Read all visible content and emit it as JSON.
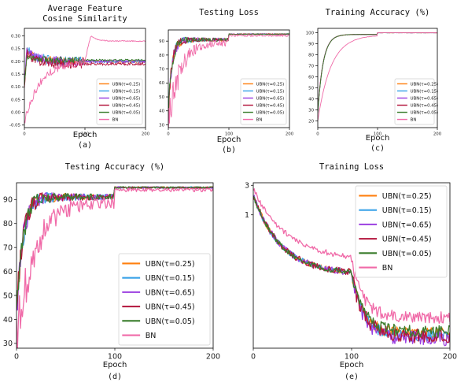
{
  "series_colors": {
    "UBN(τ=0.25)": "#ff7f0e",
    "UBN(τ=0.15)": "#3ba3e8",
    "UBN(τ=0.65)": "#9b3fe0",
    "UBN(τ=0.45)": "#b3143c",
    "UBN(τ=0.05)": "#3a7d2c",
    "BN": "#f06aa8"
  },
  "chart_data": [
    {
      "id": "a",
      "type": "line",
      "title": [
        "Average Feature",
        "Cosine Similarity"
      ],
      "xlabel": "Epoch",
      "caption": "(a)",
      "xlim": [
        0,
        200
      ],
      "ylim": [
        -0.06,
        0.33
      ],
      "xticks": [
        0,
        100,
        200
      ],
      "yticks": [
        -0.05,
        0.0,
        0.05,
        0.1,
        0.15,
        0.2,
        0.25,
        0.3
      ],
      "ytick_labels": [
        "-0.05",
        "0.00",
        "0.05",
        "0.10",
        "0.15",
        "0.20",
        "0.25",
        "0.30"
      ],
      "legend": [
        "UBN(τ=0.25)",
        "UBN(τ=0.15)",
        "UBN(τ=0.65)",
        "UBN(τ=0.45)",
        "UBN(τ=0.05)",
        "BN"
      ],
      "legend_loc": "lower-right",
      "series": [
        {
          "name": "UBN(τ=0.25)",
          "kind": "decay",
          "start": 0.1,
          "peak": 0.24,
          "final": 0.2,
          "noise": 0.01
        },
        {
          "name": "UBN(τ=0.15)",
          "kind": "decay",
          "start": 0.11,
          "peak": 0.25,
          "final": 0.2,
          "noise": 0.012
        },
        {
          "name": "UBN(τ=0.65)",
          "kind": "decay",
          "start": 0.12,
          "peak": 0.24,
          "final": 0.2,
          "noise": 0.012
        },
        {
          "name": "UBN(τ=0.45)",
          "kind": "decay",
          "start": 0.09,
          "peak": 0.23,
          "final": 0.19,
          "noise": 0.012
        },
        {
          "name": "UBN(τ=0.05)",
          "kind": "decay",
          "start": 0.1,
          "peak": 0.22,
          "final": 0.205,
          "noise": 0.008
        },
        {
          "name": "BN",
          "kind": "cos_bn",
          "start": -0.04,
          "final": 0.28,
          "noise": 0.01
        }
      ]
    },
    {
      "id": "b",
      "type": "line",
      "title": [
        "Testing Loss"
      ],
      "xlabel": "Epoch",
      "caption": "(b)",
      "xlim": [
        0,
        200
      ],
      "ylim": [
        28,
        98
      ],
      "xticks": [
        0,
        100,
        200
      ],
      "yticks": [
        30,
        40,
        50,
        60,
        70,
        80,
        90
      ],
      "ytick_labels": [
        "30",
        "40",
        "50",
        "60",
        "70",
        "80",
        "90"
      ],
      "legend": [
        "UBN(τ=0.25)",
        "UBN(τ=0.15)",
        "UBN(τ=0.65)",
        "UBN(τ=0.45)",
        "UBN(τ=0.05)",
        "BN"
      ],
      "legend_loc": "lower-right",
      "series": [
        {
          "name": "UBN(τ=0.25)",
          "kind": "acc",
          "start": 40,
          "plateau": 91,
          "final": 95,
          "tau": 6,
          "noise": 1.2
        },
        {
          "name": "UBN(τ=0.15)",
          "kind": "acc",
          "start": 40,
          "plateau": 91,
          "final": 95,
          "tau": 6,
          "noise": 1.2
        },
        {
          "name": "UBN(τ=0.65)",
          "kind": "acc",
          "start": 40,
          "plateau": 91,
          "final": 95,
          "tau": 6,
          "noise": 1.2
        },
        {
          "name": "UBN(τ=0.45)",
          "kind": "acc",
          "start": 40,
          "plateau": 91,
          "final": 95,
          "tau": 6,
          "noise": 1.2
        },
        {
          "name": "UBN(τ=0.05)",
          "kind": "acc",
          "start": 40,
          "plateau": 91,
          "final": 95,
          "tau": 6,
          "noise": 1.2
        },
        {
          "name": "BN",
          "kind": "acc",
          "start": 31,
          "plateau": 89,
          "final": 94,
          "tau": 18,
          "noise": 2.5
        }
      ]
    },
    {
      "id": "c",
      "type": "line",
      "title": [
        "Training Accuracy (%)"
      ],
      "xlabel": "Epoch",
      "caption": "(c)",
      "xlim": [
        0,
        200
      ],
      "ylim": [
        14,
        104
      ],
      "xticks": [
        0,
        100,
        200
      ],
      "yticks": [
        20,
        30,
        40,
        50,
        60,
        70,
        80,
        90,
        100
      ],
      "ytick_labels": [
        "20",
        "30",
        "40",
        "50",
        "60",
        "70",
        "80",
        "90",
        "100"
      ],
      "legend": [
        "UBN(τ=0.25)",
        "UBN(τ=0.15)",
        "UBN(τ=0.65)",
        "UBN(τ=0.45)",
        "UBN(τ=0.05)",
        "BN"
      ],
      "legend_loc": "lower-right",
      "series": [
        {
          "name": "UBN(τ=0.25)",
          "kind": "smooth",
          "start": 28,
          "plateau": 98.5,
          "final": 100,
          "tau": 9
        },
        {
          "name": "UBN(τ=0.15)",
          "kind": "smooth",
          "start": 27,
          "plateau": 98.5,
          "final": 100,
          "tau": 9
        },
        {
          "name": "UBN(τ=0.65)",
          "kind": "smooth",
          "start": 29,
          "plateau": 98.5,
          "final": 100,
          "tau": 9
        },
        {
          "name": "UBN(τ=0.45)",
          "kind": "smooth",
          "start": 28,
          "plateau": 98.5,
          "final": 100,
          "tau": 9
        },
        {
          "name": "UBN(τ=0.05)",
          "kind": "smooth",
          "start": 27,
          "plateau": 98.5,
          "final": 100,
          "tau": 9
        },
        {
          "name": "BN",
          "kind": "smooth",
          "start": 20,
          "plateau": 98,
          "final": 100,
          "tau": 22
        }
      ]
    },
    {
      "id": "d",
      "type": "line",
      "title": [
        "Testing Accuracy (%)"
      ],
      "xlabel": "Epoch",
      "caption": "(d)",
      "xlim": [
        0,
        200
      ],
      "ylim": [
        28,
        97
      ],
      "xticks": [
        0,
        100,
        200
      ],
      "yticks": [
        30,
        40,
        50,
        60,
        70,
        80,
        90
      ],
      "ytick_labels": [
        "30",
        "40",
        "50",
        "60",
        "70",
        "80",
        "90"
      ],
      "legend": [
        "UBN(τ=0.25)",
        "UBN(τ=0.15)",
        "UBN(τ=0.65)",
        "UBN(τ=0.45)",
        "UBN(τ=0.05)",
        "BN"
      ],
      "legend_loc": "lower-right",
      "series": [
        {
          "name": "UBN(τ=0.25)",
          "kind": "acc",
          "start": 40,
          "plateau": 91,
          "final": 95,
          "tau": 6,
          "noise": 1.2
        },
        {
          "name": "UBN(τ=0.15)",
          "kind": "acc",
          "start": 40,
          "plateau": 91,
          "final": 95,
          "tau": 6,
          "noise": 1.2
        },
        {
          "name": "UBN(τ=0.65)",
          "kind": "acc",
          "start": 40,
          "plateau": 91,
          "final": 95,
          "tau": 6,
          "noise": 1.2
        },
        {
          "name": "UBN(τ=0.45)",
          "kind": "acc",
          "start": 40,
          "plateau": 91,
          "final": 95,
          "tau": 6,
          "noise": 1.2
        },
        {
          "name": "UBN(τ=0.05)",
          "kind": "acc",
          "start": 40,
          "plateau": 91,
          "final": 95,
          "tau": 6,
          "noise": 1.2
        },
        {
          "name": "BN",
          "kind": "acc",
          "start": 31,
          "plateau": 89,
          "final": 94,
          "tau": 18,
          "noise": 2.5
        }
      ]
    },
    {
      "id": "e",
      "type": "line",
      "title": [
        "Training Loss"
      ],
      "xlabel": "Epoch",
      "caption": "(e)",
      "xlim": [
        0,
        200
      ],
      "yscale": "log",
      "ylim": [
        0.007,
        3.3
      ],
      "xticks": [
        0,
        100,
        200
      ],
      "yticks": [
        1,
        3
      ],
      "ytick_labels": [
        "1",
        "3"
      ],
      "legend": [
        "UBN(τ=0.25)",
        "UBN(τ=0.15)",
        "UBN(τ=0.65)",
        "UBN(τ=0.45)",
        "UBN(τ=0.05)",
        "BN"
      ],
      "legend_loc": "upper-right",
      "series": [
        {
          "name": "UBN(τ=0.25)",
          "kind": "loss",
          "start": 2.1,
          "mid": 0.11,
          "final": 0.012,
          "tau": 28,
          "noise": 0.1
        },
        {
          "name": "UBN(τ=0.15)",
          "kind": "loss",
          "start": 2.1,
          "mid": 0.11,
          "final": 0.011,
          "tau": 28,
          "noise": 0.1
        },
        {
          "name": "UBN(τ=0.65)",
          "kind": "loss",
          "start": 2.1,
          "mid": 0.11,
          "final": 0.01,
          "tau": 28,
          "noise": 0.12
        },
        {
          "name": "UBN(τ=0.45)",
          "kind": "loss",
          "start": 2.1,
          "mid": 0.11,
          "final": 0.011,
          "tau": 28,
          "noise": 0.12
        },
        {
          "name": "UBN(τ=0.05)",
          "kind": "loss",
          "start": 2.1,
          "mid": 0.11,
          "final": 0.013,
          "tau": 28,
          "noise": 0.1
        },
        {
          "name": "BN",
          "kind": "loss",
          "start": 2.6,
          "mid": 0.18,
          "final": 0.022,
          "tau": 35,
          "noise": 0.1
        }
      ]
    }
  ]
}
